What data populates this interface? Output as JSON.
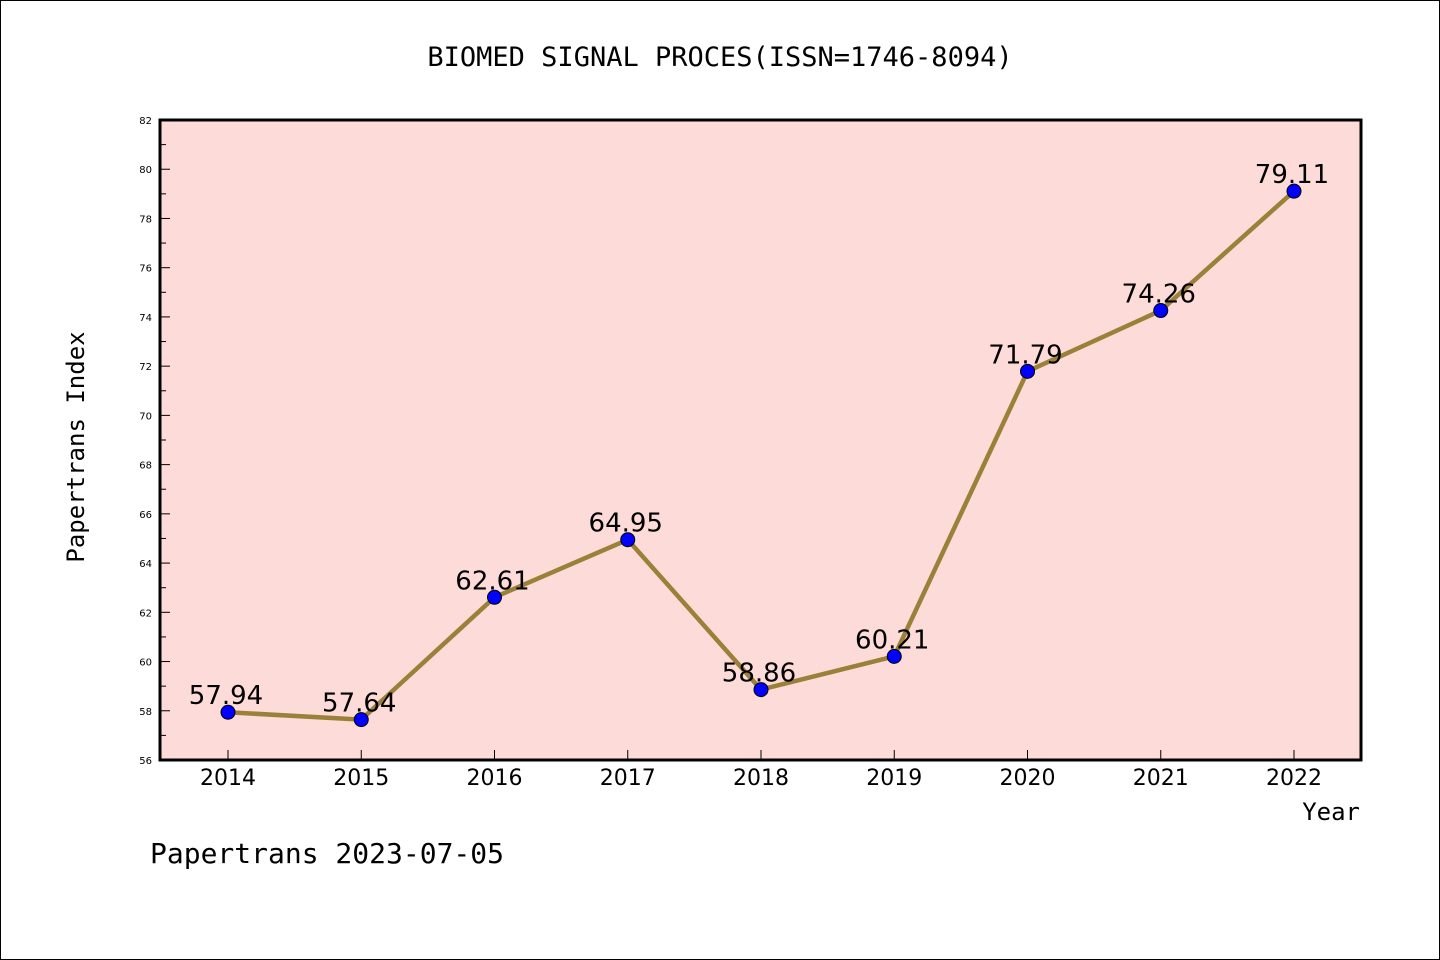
{
  "footer": "Papertrans 2023-07-05",
  "colors": {
    "plot_background": "#fddbd8",
    "line": "#9a8038",
    "marker": "#0000ff",
    "marker_edge": "#000000"
  },
  "chart_data": {
    "type": "line",
    "title": "BIOMED SIGNAL PROCES(ISSN=1746-8094)",
    "xlabel": "Year",
    "ylabel": "Papertrans Index",
    "categories": [
      "2014",
      "2015",
      "2016",
      "2017",
      "2018",
      "2019",
      "2020",
      "2021",
      "2022"
    ],
    "series": [
      {
        "values": [
          57.94,
          57.64,
          62.61,
          64.95,
          58.86,
          60.21,
          71.79,
          74.26,
          79.11
        ],
        "labels": [
          "57.94",
          "57.64",
          "62.61",
          "64.95",
          "58.86",
          "60.21",
          "71.79",
          "74.26",
          "79.11"
        ]
      }
    ],
    "ylim": [
      56,
      82
    ],
    "yticks": [
      56,
      58,
      60,
      62,
      64,
      66,
      68,
      70,
      72,
      74,
      76,
      78,
      80,
      82
    ],
    "grid": false,
    "legend": "none"
  }
}
